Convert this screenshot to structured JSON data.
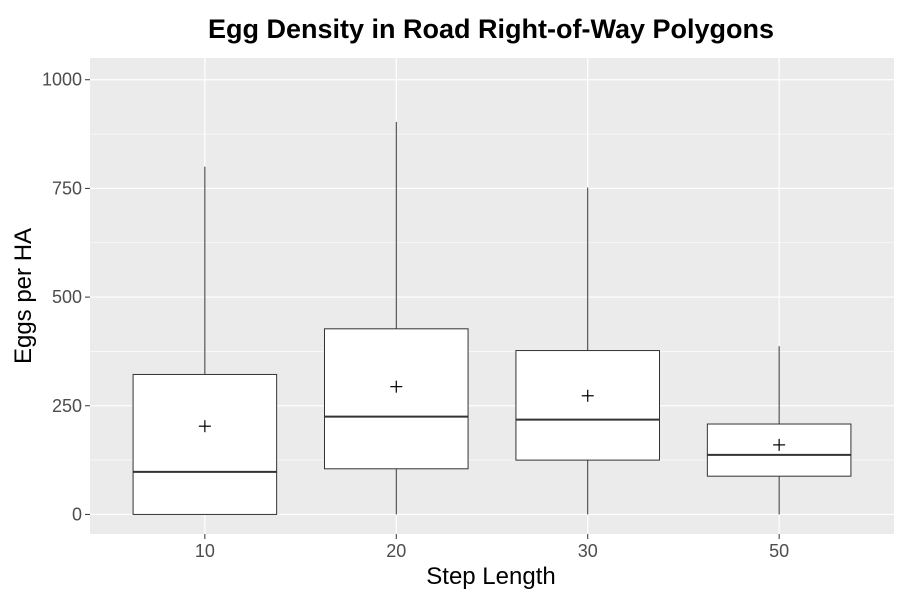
{
  "chart_data": {
    "type": "boxplot",
    "title": "Egg Density in Road Right-of-Way Polygons",
    "xlabel": "Step Length",
    "ylabel": "Eggs per HA",
    "ylim": [
      -45,
      1050
    ],
    "yticks": [
      0,
      250,
      500,
      750,
      1000
    ],
    "grid": true,
    "colors": {
      "panel": "#ebebeb",
      "grid": "#ffffff",
      "box_fill": "#ffffff",
      "box_stroke": "#333333",
      "tick_label": "#4d4d4d"
    },
    "categories": [
      "10",
      "20",
      "30",
      "50"
    ],
    "boxes": [
      {
        "category": "10",
        "whisker_low": 0,
        "q1": 0,
        "median": 98,
        "q3": 322,
        "whisker_high": 800,
        "mean": 203
      },
      {
        "category": "20",
        "whisker_low": 0,
        "q1": 105,
        "median": 225,
        "q3": 427,
        "whisker_high": 903,
        "mean": 294
      },
      {
        "category": "30",
        "whisker_low": 0,
        "q1": 125,
        "median": 218,
        "q3": 377,
        "whisker_high": 752,
        "mean": 273
      },
      {
        "category": "50",
        "whisker_low": 0,
        "q1": 88,
        "median": 137,
        "q3": 208,
        "whisker_high": 387,
        "mean": 160
      }
    ]
  }
}
